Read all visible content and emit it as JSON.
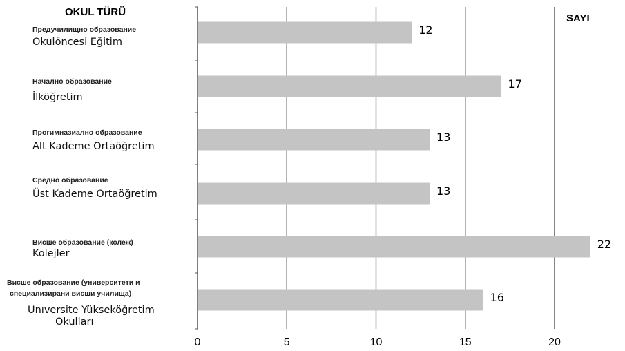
{
  "chart_data": {
    "type": "bar",
    "orientation": "horizontal",
    "title": "",
    "ylabel": "OKUL TÜRÜ",
    "xlabel": "SAYI",
    "xlim": [
      0,
      22.5
    ],
    "xticks": [
      0,
      5,
      10,
      15,
      20
    ],
    "grid": true,
    "bar_color": "#c4c4c4",
    "categories": [
      {
        "bg": "Предучилищно образование",
        "tr": "Okulöncesi Eğitim"
      },
      {
        "bg": "Начално образование",
        "tr": "İlköğretim"
      },
      {
        "bg": "Прогимназиално образование",
        "tr": "Alt Kademe Ortaöğretim"
      },
      {
        "bg": "Средно образование",
        "tr": "Üst Kademe Ortaöğretim"
      },
      {
        "bg": "Висше образование (колеж)",
        "tr": "Kolejler"
      },
      {
        "bg": "Висше образование (университети и специализирани висши училища)",
        "tr": "Unıversite Yükseköğretim Okulları"
      }
    ],
    "values": [
      12,
      17,
      13,
      13,
      22,
      16
    ]
  }
}
